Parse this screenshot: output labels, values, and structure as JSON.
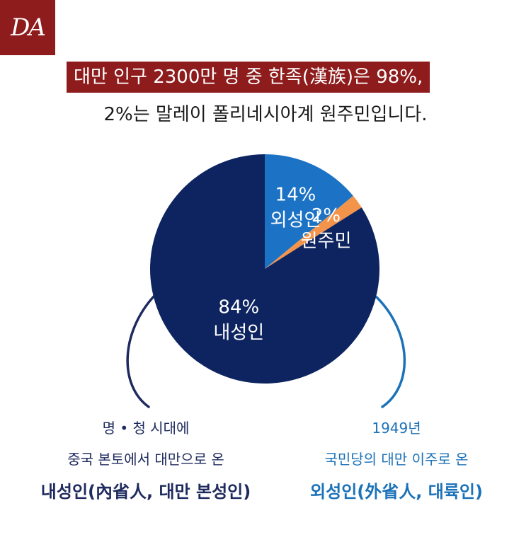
{
  "logo": {
    "text": "DA"
  },
  "headline": {
    "line1": "대만 인구 2300만 명 중 한족(漢族)은 98%,",
    "line2": "2%는 말레이 폴리네시아계 원주민입니다."
  },
  "colors": {
    "brand_red": "#8e1c1c",
    "navy": "#0e2460",
    "blue": "#1c72c4",
    "orange": "#f4934a"
  },
  "chart_data": {
    "type": "pie",
    "title": "",
    "slices": [
      {
        "percent_label": "14%",
        "name": "외성인",
        "value": 14,
        "color": "#1c72c4"
      },
      {
        "percent_label": "2%",
        "name": "원주민",
        "value": 2,
        "color": "#f4934a"
      },
      {
        "percent_label": "84%",
        "name": "내성인",
        "value": 84,
        "color": "#0e2460"
      }
    ]
  },
  "captions": {
    "left": {
      "line1": "명 • 청 시대에",
      "line2": "중국 본토에서 대만으로 온",
      "line3": "내성인(內省人, 대만 본성인)"
    },
    "right": {
      "line1": "1949년",
      "line2": "국민당의 대만 이주로 온",
      "line3": "외성인(外省人, 대륙인)"
    }
  }
}
